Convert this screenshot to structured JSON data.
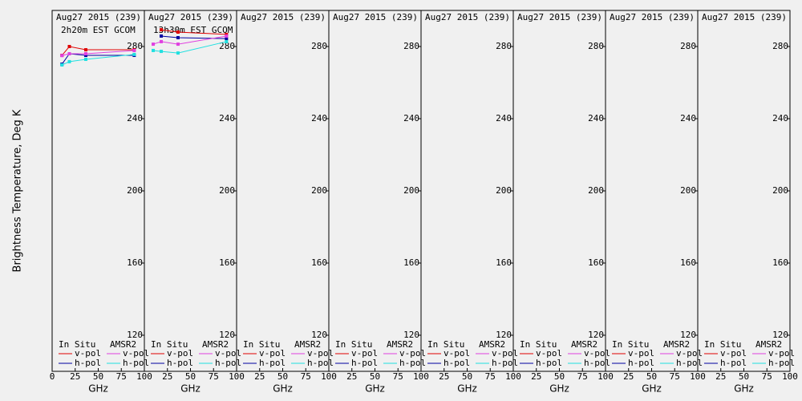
{
  "chart_data": [
    {
      "type": "line",
      "title": "Aug27 2015 (239)",
      "subtitle": "2h20m EST GCOM",
      "ylabel": "Brightness Temperature, Deg K",
      "xlabel": "GHz",
      "xlim": [
        0,
        100
      ],
      "xticks": [
        0,
        25,
        50,
        75,
        100
      ],
      "ylim": [
        100,
        300
      ],
      "yticks": [
        120,
        160,
        200,
        240,
        280
      ],
      "x": [
        10.65,
        18.7,
        36.5,
        89
      ],
      "legend_groups": [
        {
          "title": "In Situ",
          "series": [
            {
              "name": "v-pol",
              "color": "#e00000",
              "values": [
                275.1,
                280,
                278.2,
                278.2
              ]
            },
            {
              "name": "h-pol",
              "color": "#0000a0",
              "values": [
                270.2,
                276,
                275.1,
                275.1
              ]
            }
          ]
        },
        {
          "title": "AMSR2",
          "series": [
            {
              "name": "v-pol",
              "color": "#e040e0",
              "values": [
                275,
                276,
                276,
                277.8
              ]
            },
            {
              "name": "h-pol",
              "color": "#20e0e0",
              "values": [
                269.8,
                271.6,
                272.9,
                275.6
              ]
            }
          ]
        }
      ]
    },
    {
      "type": "line",
      "title": "Aug27 2015 (239)",
      "subtitle": "13h30m EST GCOM",
      "xlabel": "GHz",
      "xlim": [
        0,
        100
      ],
      "xticks": [
        25,
        50,
        75,
        100
      ],
      "ylim": [
        100,
        300
      ],
      "yticks": [
        120,
        160,
        200,
        240,
        280
      ],
      "x": [
        9.6,
        18.3,
        36.5,
        89
      ],
      "legend_groups": [
        {
          "title": "In Situ",
          "series": [
            {
              "name": "v-pol",
              "color": "#e00000",
              "values": [
                null,
                289.3,
                288,
                286.7
              ]
            },
            {
              "name": "h-pol",
              "color": "#0000a0",
              "values": [
                null,
                285.8,
                284.9,
                284.4
              ]
            }
          ]
        },
        {
          "title": "AMSR2",
          "series": [
            {
              "name": "v-pol",
              "color": "#e040e0",
              "values": [
                281.3,
                282.7,
                281.3,
                285.8
              ]
            },
            {
              "name": "h-pol",
              "color": "#20e0e0",
              "values": [
                277.8,
                277.3,
                276.4,
                282.7
              ]
            }
          ]
        }
      ]
    },
    {
      "type": "line",
      "title": "Aug27 2015 (239)",
      "xlabel": "GHz",
      "xlim": [
        0,
        100
      ],
      "xticks": [
        25,
        50,
        75,
        100
      ],
      "ylim": [
        100,
        300
      ],
      "yticks": [
        120,
        160,
        200,
        240,
        280
      ],
      "x": [],
      "legend_groups": [
        {
          "title": "In Situ",
          "series": [
            {
              "name": "v-pol",
              "color": "#e00000",
              "values": []
            },
            {
              "name": "h-pol",
              "color": "#0000a0",
              "values": []
            }
          ]
        },
        {
          "title": "AMSR2",
          "series": [
            {
              "name": "v-pol",
              "color": "#e040e0",
              "values": []
            },
            {
              "name": "h-pol",
              "color": "#20e0e0",
              "values": []
            }
          ]
        }
      ]
    },
    {
      "type": "line",
      "title": "Aug27 2015 (239)",
      "xlabel": "GHz",
      "xlim": [
        0,
        100
      ],
      "xticks": [
        25,
        50,
        75,
        100
      ],
      "ylim": [
        100,
        300
      ],
      "yticks": [
        120,
        160,
        200,
        240,
        280
      ],
      "x": [],
      "legend_groups": [
        {
          "title": "In Situ",
          "series": [
            {
              "name": "v-pol",
              "color": "#e00000",
              "values": []
            },
            {
              "name": "h-pol",
              "color": "#0000a0",
              "values": []
            }
          ]
        },
        {
          "title": "AMSR2",
          "series": [
            {
              "name": "v-pol",
              "color": "#e040e0",
              "values": []
            },
            {
              "name": "h-pol",
              "color": "#20e0e0",
              "values": []
            }
          ]
        }
      ]
    },
    {
      "type": "line",
      "title": "Aug27 2015 (239)",
      "xlabel": "GHz",
      "xlim": [
        0,
        100
      ],
      "xticks": [
        25,
        50,
        75,
        100
      ],
      "ylim": [
        100,
        300
      ],
      "yticks": [
        120,
        160,
        200,
        240,
        280
      ],
      "x": [],
      "legend_groups": [
        {
          "title": "In Situ",
          "series": [
            {
              "name": "v-pol",
              "color": "#e00000",
              "values": []
            },
            {
              "name": "h-pol",
              "color": "#0000a0",
              "values": []
            }
          ]
        },
        {
          "title": "AMSR2",
          "series": [
            {
              "name": "v-pol",
              "color": "#e040e0",
              "values": []
            },
            {
              "name": "h-pol",
              "color": "#20e0e0",
              "values": []
            }
          ]
        }
      ]
    },
    {
      "type": "line",
      "title": "Aug27 2015 (239)",
      "xlabel": "GHz",
      "xlim": [
        0,
        100
      ],
      "xticks": [
        25,
        50,
        75,
        100
      ],
      "ylim": [
        100,
        300
      ],
      "yticks": [
        120,
        160,
        200,
        240,
        280
      ],
      "x": [],
      "legend_groups": [
        {
          "title": "In Situ",
          "series": [
            {
              "name": "v-pol",
              "color": "#e00000",
              "values": []
            },
            {
              "name": "h-pol",
              "color": "#0000a0",
              "values": []
            }
          ]
        },
        {
          "title": "AMSR2",
          "series": [
            {
              "name": "v-pol",
              "color": "#e040e0",
              "values": []
            },
            {
              "name": "h-pol",
              "color": "#20e0e0",
              "values": []
            }
          ]
        }
      ]
    },
    {
      "type": "line",
      "title": "Aug27 2015 (239)",
      "xlabel": "GHz",
      "xlim": [
        0,
        100
      ],
      "xticks": [
        25,
        50,
        75,
        100
      ],
      "ylim": [
        100,
        300
      ],
      "yticks": [
        120,
        160,
        200,
        240,
        280
      ],
      "x": [],
      "legend_groups": [
        {
          "title": "In Situ",
          "series": [
            {
              "name": "v-pol",
              "color": "#e00000",
              "values": []
            },
            {
              "name": "h-pol",
              "color": "#0000a0",
              "values": []
            }
          ]
        },
        {
          "title": "AMSR2",
          "series": [
            {
              "name": "v-pol",
              "color": "#e040e0",
              "values": []
            },
            {
              "name": "h-pol",
              "color": "#20e0e0",
              "values": []
            }
          ]
        }
      ]
    },
    {
      "type": "line",
      "title": "Aug27 2015 (239)",
      "xlabel": "GHz",
      "xlim": [
        0,
        100
      ],
      "xticks": [
        25,
        50,
        75,
        100
      ],
      "ylim": [
        100,
        300
      ],
      "yticks": [
        120,
        160,
        200,
        240,
        280
      ],
      "x": [],
      "legend_groups": [
        {
          "title": "In Situ",
          "series": [
            {
              "name": "v-pol",
              "color": "#e00000",
              "values": []
            },
            {
              "name": "h-pol",
              "color": "#0000a0",
              "values": []
            }
          ]
        },
        {
          "title": "AMSR2",
          "series": [
            {
              "name": "v-pol",
              "color": "#e040e0",
              "values": []
            },
            {
              "name": "h-pol",
              "color": "#20e0e0",
              "values": []
            }
          ]
        }
      ]
    }
  ]
}
